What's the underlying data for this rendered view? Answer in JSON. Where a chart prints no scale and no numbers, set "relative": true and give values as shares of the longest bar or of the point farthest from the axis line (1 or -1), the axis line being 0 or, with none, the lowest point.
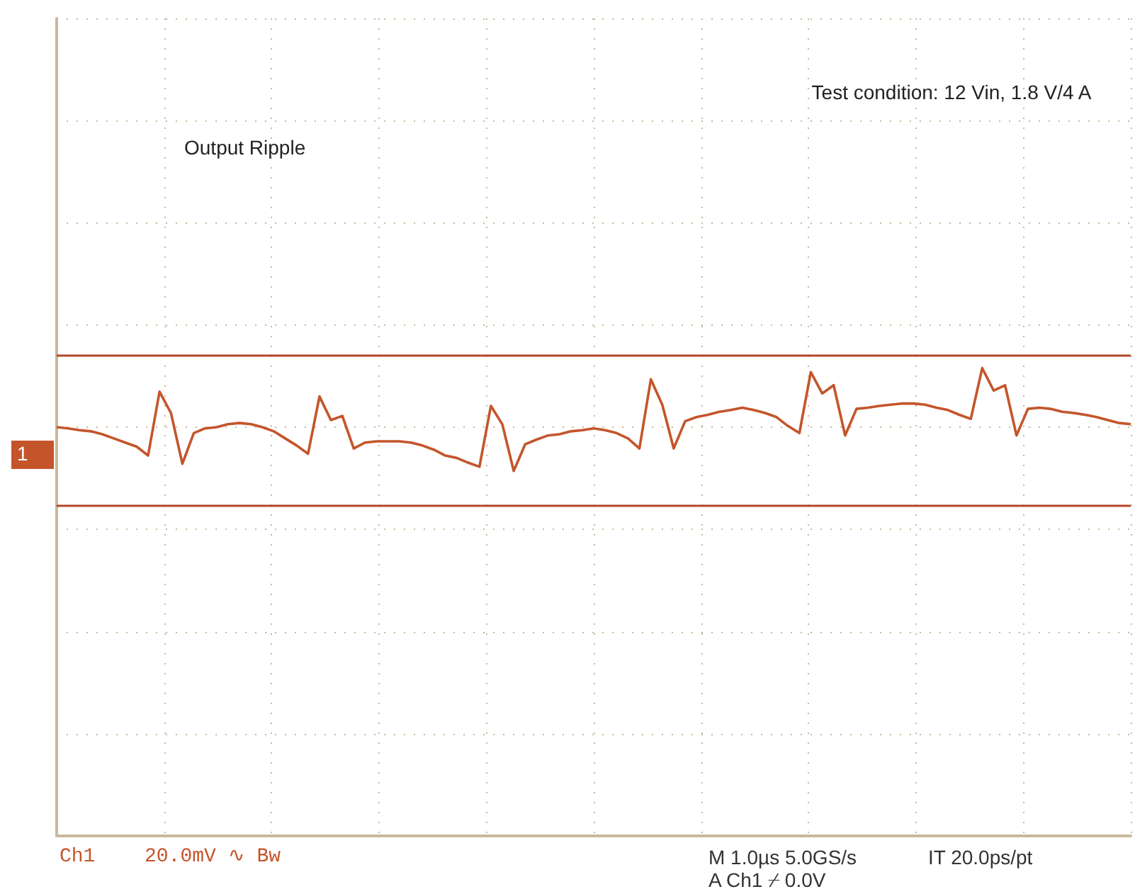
{
  "chart_data": {
    "type": "line",
    "relative": true,
    "grid": true,
    "marker": "none",
    "line_style": "solid",
    "annotations": [
      "Output Ripple",
      "Test condition: 12 Vin, 1.8 V/4 A",
      "Ch1",
      "20.0mV ∿ Bw",
      "M 1.0µs 5.0GS/s",
      "IT 20.0ps/pt",
      "A Ch1 ⌿ 0.0V",
      "1"
    ],
    "categories": [
      null,
      null,
      null,
      null,
      null,
      null,
      null,
      null,
      null,
      null,
      null,
      null,
      null,
      null,
      null,
      null,
      null,
      null,
      null,
      null,
      null,
      null,
      null,
      null,
      null,
      null,
      null,
      null,
      null,
      null,
      null,
      null,
      null,
      null,
      null,
      null,
      null,
      null,
      null,
      null,
      null,
      null,
      null,
      null,
      null,
      null,
      null,
      null,
      null,
      null,
      null,
      null,
      null,
      null,
      null,
      null,
      null,
      null,
      null,
      null,
      null,
      null,
      null,
      null,
      null,
      null,
      null,
      null,
      null,
      null,
      null,
      null,
      null,
      null,
      null,
      null,
      null,
      null,
      null,
      null,
      null,
      null,
      null,
      null,
      null,
      null,
      null,
      null,
      null,
      null,
      null,
      null,
      null,
      null,
      null
    ],
    "series": [
      {
        "color": "#c4552b",
        "values": [
          0,
          -0.02,
          -0.05,
          -0.07,
          -0.12,
          -0.19,
          -0.26,
          -0.33,
          -0.48,
          0.6,
          0.24,
          -0.62,
          -0.1,
          -0.02,
          0,
          0.05,
          0.07,
          0.05,
          0,
          -0.07,
          -0.19,
          -0.31,
          -0.45,
          0.52,
          0.12,
          0.19,
          -0.36,
          -0.26,
          -0.24,
          -0.24,
          -0.24,
          -0.26,
          -0.31,
          -0.38,
          -0.48,
          -0.52,
          -0.6,
          -0.67,
          0.36,
          0.05,
          -0.74,
          -0.29,
          -0.21,
          -0.14,
          -0.12,
          -0.07,
          -0.05,
          -0.02,
          -0.05,
          -0.1,
          -0.19,
          -0.36,
          0.81,
          0.38,
          -0.36,
          0.1,
          0.17,
          0.21,
          0.26,
          0.29,
          0.33,
          0.29,
          0.24,
          0.17,
          0.02,
          -0.1,
          0.93,
          0.57,
          0.71,
          -0.14,
          0.31,
          0.33,
          0.36,
          0.38,
          0.4,
          0.4,
          0.38,
          0.33,
          0.29,
          0.21,
          0.14,
          1,
          0.62,
          0.71,
          -0.14,
          0.31,
          0.33,
          0.31,
          0.26,
          0.24,
          0.21,
          0.17,
          0.12,
          0.07,
          0.05
        ]
      }
    ],
    "ref_lines": [
      {
        "axis": "y",
        "value": 1.21,
        "color": "#b5462a"
      },
      {
        "axis": "y",
        "value": -1.33,
        "color": "#b5462a"
      }
    ]
  }
}
